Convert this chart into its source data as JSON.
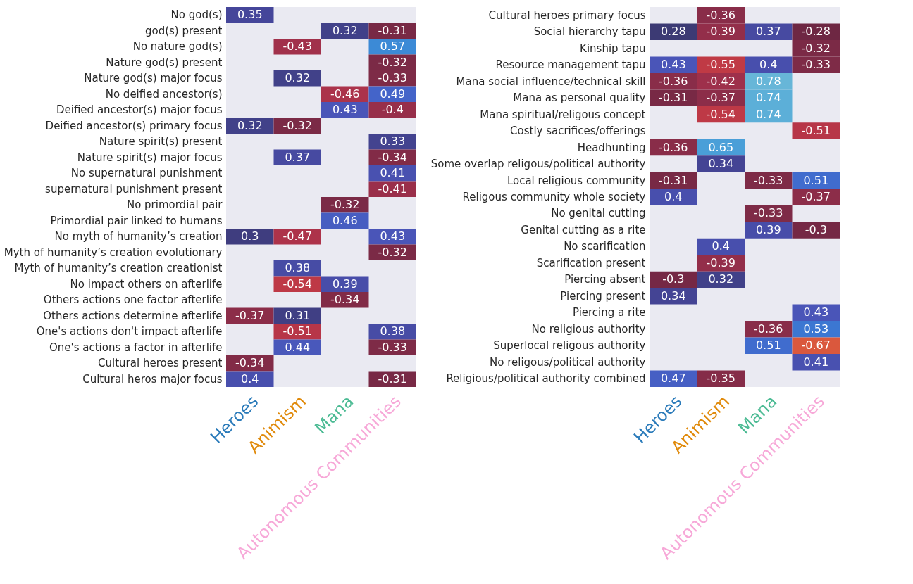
{
  "chart_data": [
    {
      "type": "heatmap",
      "categories": [
        "Heroes",
        "Animism",
        "Mana",
        "Autonomous Communities"
      ],
      "colors": [
        "#2b7bba",
        "#e08a0b",
        "#4cbb94",
        "#f7a8d8"
      ],
      "data_labels": true,
      "grid": false,
      "legend": false,
      "y_categories": [
        "No god(s)",
        "god(s) present",
        "No nature god(s)",
        "Nature god(s) present",
        "Nature god(s) major focus",
        "No deified ancestor(s)",
        "Deified ancestor(s) major focus",
        "Deified ancestor(s) primary focus",
        "Nature spirit(s) present",
        "Nature spirit(s) major focus",
        "No supernatural punishment",
        "supernatural punishment present",
        "No primordial pair",
        "Primordial pair linked to humans",
        "No myth of humanity’s creation",
        "Myth of humanity’s creation evolutionary",
        "Myth of humanity’s creation creationist",
        "No impact others on afterlife",
        "Others actions one factor afterlife",
        "Others actions determine afterlife",
        "One's actions don't impact afterlife",
        "One's actions a factor in afterlife",
        "Cultural heroes present",
        "Cultural heros major focus"
      ],
      "cells": [
        [
          0.35,
          null,
          null,
          null
        ],
        [
          null,
          null,
          0.32,
          -0.31
        ],
        [
          null,
          -0.43,
          null,
          0.57
        ],
        [
          null,
          null,
          null,
          -0.32
        ],
        [
          null,
          0.32,
          null,
          -0.33
        ],
        [
          null,
          null,
          -0.46,
          0.49
        ],
        [
          null,
          null,
          0.43,
          -0.4
        ],
        [
          0.32,
          -0.32,
          null,
          null
        ],
        [
          null,
          null,
          null,
          0.33
        ],
        [
          null,
          0.37,
          null,
          -0.34
        ],
        [
          null,
          null,
          null,
          0.41
        ],
        [
          null,
          null,
          null,
          -0.41
        ],
        [
          null,
          null,
          -0.32,
          null
        ],
        [
          null,
          null,
          0.46,
          null
        ],
        [
          0.3,
          -0.47,
          null,
          0.43
        ],
        [
          null,
          null,
          null,
          -0.32
        ],
        [
          null,
          0.38,
          null,
          null
        ],
        [
          null,
          -0.54,
          0.39,
          null
        ],
        [
          null,
          null,
          -0.34,
          null
        ],
        [
          -0.37,
          0.31,
          null,
          null
        ],
        [
          null,
          -0.51,
          null,
          0.38
        ],
        [
          null,
          0.44,
          null,
          -0.33
        ],
        [
          -0.34,
          null,
          null,
          null
        ],
        [
          0.4,
          null,
          null,
          -0.31
        ]
      ]
    },
    {
      "type": "heatmap",
      "categories": [
        "Heroes",
        "Animism",
        "Mana",
        "Autonomous Communities"
      ],
      "colors": [
        "#2b7bba",
        "#e08a0b",
        "#4cbb94",
        "#f7a8d8"
      ],
      "data_labels": true,
      "grid": false,
      "legend": false,
      "y_categories": [
        "Cultural heroes primary focus",
        "Social hierarchy tapu",
        "Kinship tapu",
        "Resource management tapu",
        "Mana social influence/technical skill",
        "Mana as personal quality",
        "Mana spiritual/religous concept",
        "Costly sacrifices/offerings",
        "Headhunting",
        "Some overlap religous/political authority",
        "Local religious community",
        "Religous community whole society",
        "No genital cutting",
        "Genital cutting as a rite",
        "No scarification",
        "Scarification present",
        "Piercing absent",
        "Piercing present",
        "Piercing a rite",
        "No religious authority",
        "Superlocal religous authority",
        "No religous/political authority",
        "Religious/political authority combined"
      ],
      "cells": [
        [
          null,
          -0.36,
          null,
          null
        ],
        [
          0.28,
          -0.39,
          0.37,
          -0.28
        ],
        [
          null,
          null,
          null,
          -0.32
        ],
        [
          0.43,
          -0.55,
          0.4,
          -0.33
        ],
        [
          -0.36,
          -0.42,
          0.78,
          null
        ],
        [
          -0.31,
          -0.37,
          0.74,
          null
        ],
        [
          null,
          -0.54,
          0.74,
          null
        ],
        [
          null,
          null,
          null,
          -0.51
        ],
        [
          -0.36,
          0.65,
          null,
          null
        ],
        [
          null,
          0.34,
          null,
          null
        ],
        [
          -0.31,
          null,
          -0.33,
          0.51
        ],
        [
          0.4,
          null,
          null,
          -0.37
        ],
        [
          null,
          null,
          -0.33,
          null
        ],
        [
          null,
          null,
          0.39,
          -0.3
        ],
        [
          null,
          0.4,
          null,
          null
        ],
        [
          null,
          -0.39,
          null,
          null
        ],
        [
          -0.3,
          0.32,
          null,
          null
        ],
        [
          0.34,
          null,
          null,
          null
        ],
        [
          null,
          null,
          null,
          0.43
        ],
        [
          null,
          null,
          -0.36,
          0.53
        ],
        [
          null,
          null,
          0.51,
          -0.67
        ],
        [
          null,
          null,
          null,
          0.41
        ],
        [
          0.47,
          -0.35,
          null,
          null
        ]
      ]
    }
  ]
}
